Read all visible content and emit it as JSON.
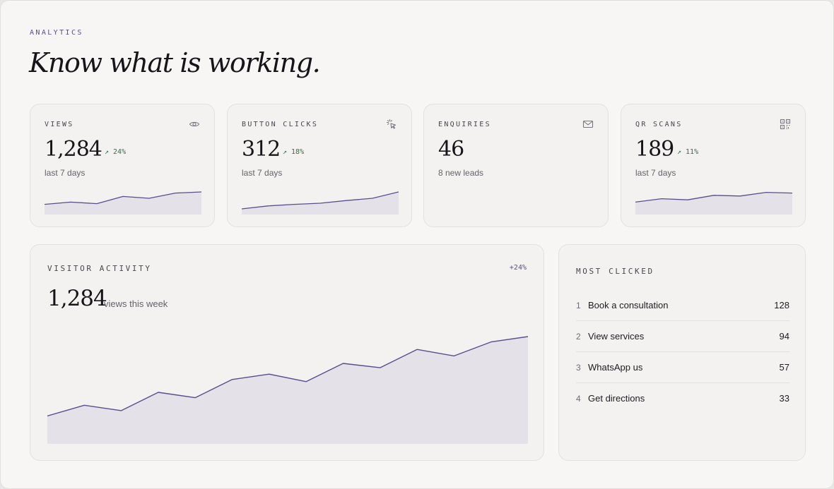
{
  "header": {
    "eyebrow": "ANALYTICS",
    "title": "Know what is working."
  },
  "colors": {
    "accent": "#5b4d8c",
    "area_fill": "#e4e1e8",
    "positive": "#3c6b4a"
  },
  "stats": [
    {
      "label": "VIEWS",
      "icon": "eye-icon",
      "value": "1,284",
      "delta": "↗ 24%",
      "sub": "last 7 days",
      "spark": [
        0.45,
        0.55,
        0.48,
        0.8,
        0.72,
        0.95,
        1.0
      ]
    },
    {
      "label": "BUTTON CLICKS",
      "icon": "cursor-click-icon",
      "value": "312",
      "delta": "↗ 18%",
      "sub": "last 7 days",
      "spark": [
        0.25,
        0.38,
        0.45,
        0.5,
        0.62,
        0.72,
        1.0
      ]
    },
    {
      "label": "ENQUIRIES",
      "icon": "mail-icon",
      "value": "46",
      "delta": "",
      "sub": "8 new leads",
      "spark": []
    },
    {
      "label": "QR SCANS",
      "icon": "qr-code-icon",
      "value": "189",
      "delta": "↗ 11%",
      "sub": "last 7 days",
      "spark": [
        0.55,
        0.7,
        0.65,
        0.85,
        0.82,
        0.98,
        0.95
      ]
    }
  ],
  "activity": {
    "label": "VISITOR ACTIVITY",
    "delta": "+24%",
    "value": "1,284",
    "sub": "views this week",
    "series": [
      0.26,
      0.36,
      0.31,
      0.48,
      0.43,
      0.6,
      0.65,
      0.58,
      0.75,
      0.71,
      0.88,
      0.82,
      0.95,
      1.0
    ]
  },
  "most_clicked": {
    "label": "MOST CLICKED",
    "items": [
      {
        "rank": "1",
        "label": "Book a consultation",
        "count": "128"
      },
      {
        "rank": "2",
        "label": "View services",
        "count": "94"
      },
      {
        "rank": "3",
        "label": "WhatsApp us",
        "count": "57"
      },
      {
        "rank": "4",
        "label": "Get directions",
        "count": "33"
      }
    ]
  }
}
